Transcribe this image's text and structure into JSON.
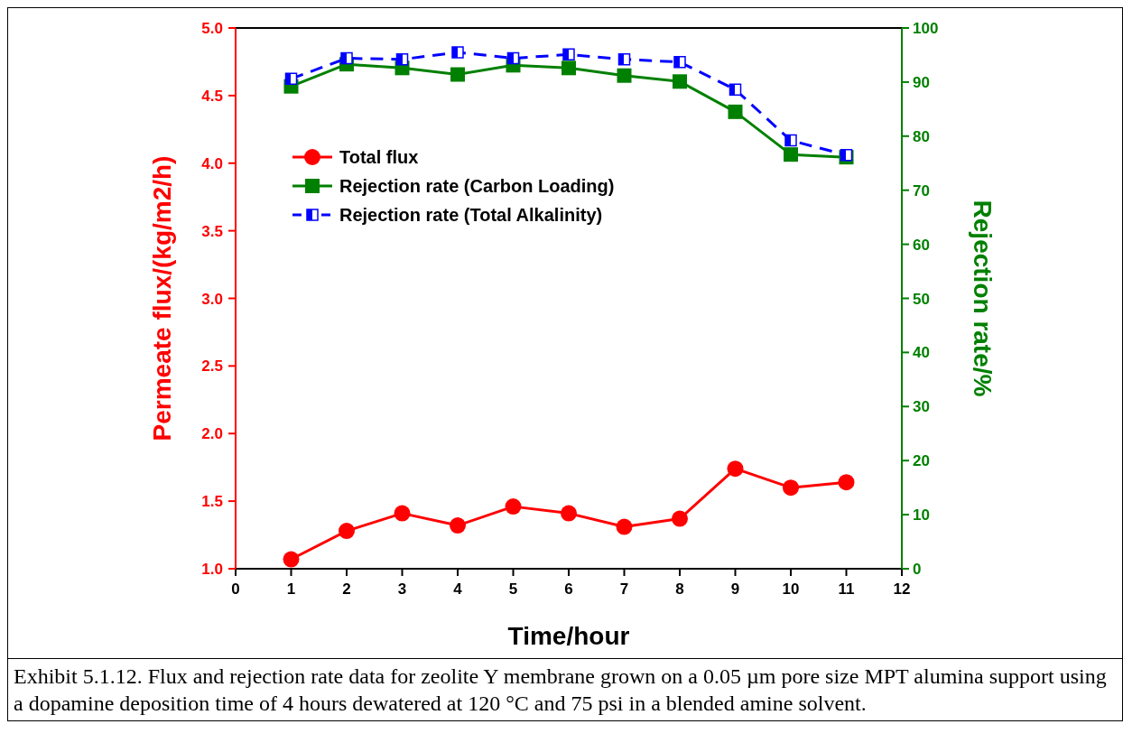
{
  "chart_data": {
    "type": "line",
    "xlabel": "Time/hour",
    "ylabel": "Permeate flux/(kg/m2/h)",
    "y2label": "Rejection rate/%",
    "x": [
      1,
      2,
      3,
      4,
      5,
      6,
      7,
      8,
      9,
      10,
      11
    ],
    "xlim": [
      0,
      12
    ],
    "xticks": [
      0,
      1,
      2,
      3,
      4,
      5,
      6,
      7,
      8,
      9,
      10,
      11,
      12
    ],
    "ylim": [
      1,
      5
    ],
    "yticks": [
      {
        "value": 1,
        "label": "1.0"
      },
      {
        "value": 1.5,
        "label": "1.5"
      },
      {
        "value": 2,
        "label": "2.0"
      },
      {
        "value": 2.5,
        "label": "2.5"
      },
      {
        "value": 3,
        "label": "3.0"
      },
      {
        "value": 3.5,
        "label": "3.5"
      },
      {
        "value": 4,
        "label": "4.0"
      },
      {
        "value": 4.5,
        "label": "4.5"
      },
      {
        "value": 5,
        "label": "5.0"
      }
    ],
    "y2lim": [
      0,
      100
    ],
    "y2ticks": [
      0,
      10,
      20,
      30,
      40,
      50,
      60,
      70,
      80,
      90,
      100
    ],
    "series": [
      {
        "name": "Total flux",
        "color": "#ff0000",
        "marker": "circle",
        "line_style": "solid",
        "values": [
          1.07,
          1.28,
          1.41,
          1.32,
          1.46,
          1.41,
          1.31,
          1.37,
          1.74,
          1.6,
          1.64
        ]
      },
      {
        "name": "Rejection rate (Carbon Loading)",
        "color": "#008000",
        "marker": "square",
        "line_style": "solid",
        "axis": "y2",
        "values": [
          89.2,
          93.3,
          92.6,
          91.4,
          93.1,
          92.6,
          91.2,
          90.1,
          84.5,
          76.6,
          76.1
        ]
      },
      {
        "name": "Rejection rate (Total Alkalinity)",
        "color": "#0000ff",
        "marker": "square",
        "line_style": "dashed",
        "axis": "y2",
        "values": [
          90.6,
          94.4,
          94.2,
          95.5,
          94.4,
          95.1,
          94.2,
          93.7,
          88.6,
          79.2,
          76.5
        ]
      }
    ],
    "legend": "top left",
    "annotations": [
      "Exhibit 5.1.12. Flux and rejection rate data for zeolite Y membrane grown on a 0.05 µm pore size MPT alumina support using a dopamine deposition time of 4 hours dewatered at 120 °C and 75 psi in a blended amine solvent."
    ]
  }
}
